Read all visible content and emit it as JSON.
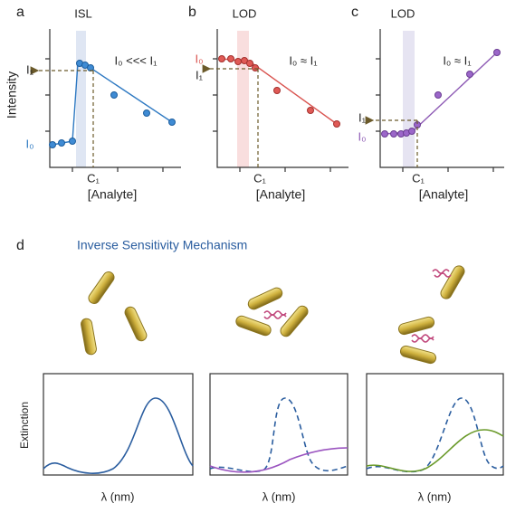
{
  "panels": [
    {
      "letter": "a",
      "region_label": "ISL",
      "relation": "I₀ <<< I₁",
      "upper_label": "I₁",
      "lower_label": "I₀",
      "x_marker": "C₁",
      "x_label": "[Analyte]"
    },
    {
      "letter": "b",
      "region_label": "LOD",
      "relation": "I₀ ≈ I₁",
      "upper_label": "I₀",
      "lower_label": "I₁",
      "x_marker": "C₁",
      "x_label": "[Analyte]"
    },
    {
      "letter": "c",
      "region_label": "LOD",
      "relation": "I₀ ≈ I₁",
      "upper_label": "I₁",
      "lower_label": "I₀",
      "x_marker": "C₁",
      "x_label": "[Analyte]"
    }
  ],
  "y_axis_label": "Intensity",
  "panel_d": {
    "letter": "d",
    "title": "Inverse Sensitivity Mechanism",
    "y_axis_label": "Extinction",
    "x_labels": [
      "λ (nm)",
      "λ (nm)",
      "λ (nm)"
    ]
  }
}
